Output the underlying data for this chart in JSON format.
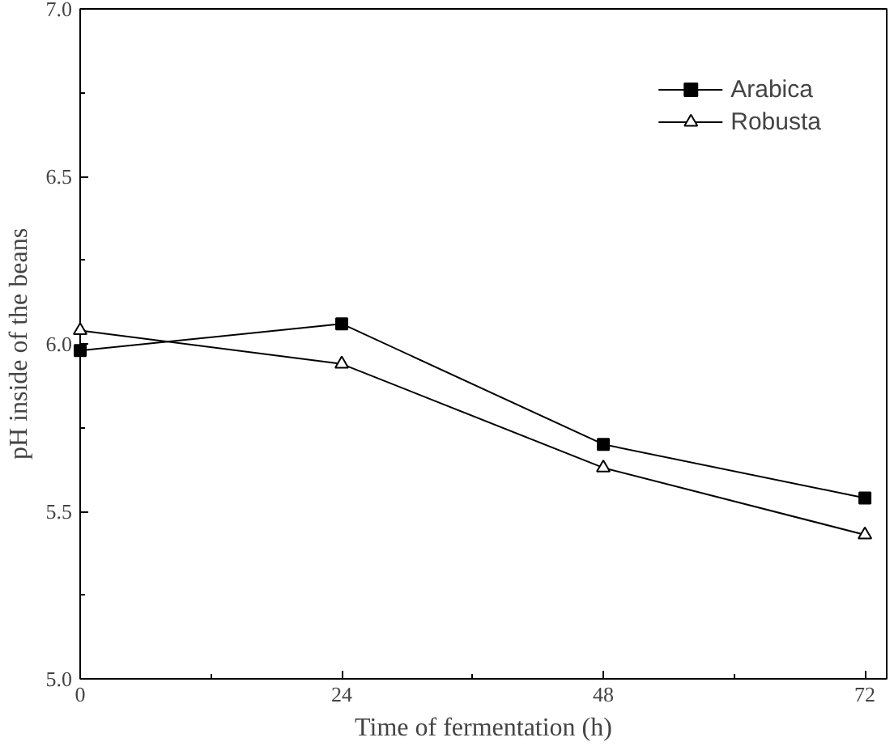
{
  "chart_data": {
    "type": "line",
    "xlabel": "Time of fermentation (h)",
    "ylabel": "pH inside of the beans",
    "x": [
      0,
      24,
      48,
      72
    ],
    "series": [
      {
        "name": "Arabica",
        "color": "#000000",
        "values": [
          5.98,
          6.06,
          5.7,
          5.54
        ],
        "marker": "square"
      },
      {
        "name": "Robusta",
        "color": "#000000",
        "values": [
          6.04,
          5.94,
          5.63,
          5.43
        ],
        "marker": "triangle"
      }
    ],
    "xlim": [
      0,
      74
    ],
    "xticks": [
      0,
      24,
      48,
      72
    ],
    "ylim": [
      5.0,
      7.0
    ],
    "yticks": [
      {
        "value": 5.0,
        "label": "5.0"
      },
      {
        "value": 5.5,
        "label": "5.5"
      },
      {
        "value": 6.0,
        "label": "6.0"
      },
      {
        "value": 6.5,
        "label": "6.5"
      },
      {
        "value": 7.0,
        "label": "7.0"
      }
    ],
    "grid": false,
    "legend": "top right",
    "line_style": "solid"
  }
}
